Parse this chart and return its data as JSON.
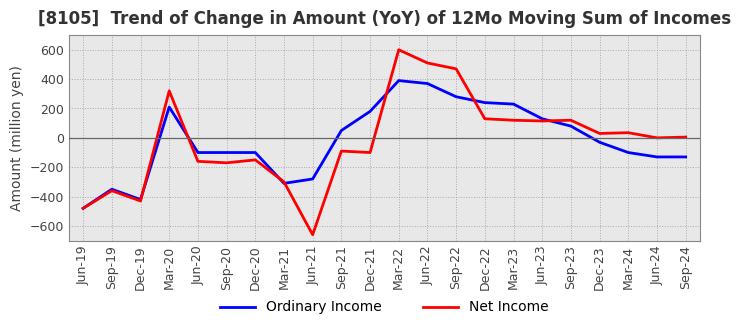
{
  "title": "[8105]  Trend of Change in Amount (YoY) of 12Mo Moving Sum of Incomes",
  "ylabel": "Amount (million yen)",
  "ylim": [
    -700,
    700
  ],
  "yticks": [
    -600,
    -400,
    -200,
    0,
    200,
    400,
    600
  ],
  "x_labels": [
    "Jun-19",
    "Sep-19",
    "Dec-19",
    "Mar-20",
    "Jun-20",
    "Sep-20",
    "Dec-20",
    "Mar-21",
    "Jun-21",
    "Sep-21",
    "Dec-21",
    "Mar-22",
    "Jun-22",
    "Sep-22",
    "Dec-22",
    "Mar-23",
    "Jun-23",
    "Sep-23",
    "Dec-23",
    "Mar-24",
    "Jun-24",
    "Sep-24"
  ],
  "ordinary_income": [
    -480,
    -350,
    -420,
    210,
    -100,
    -100,
    -100,
    -310,
    -280,
    50,
    180,
    390,
    370,
    280,
    240,
    230,
    130,
    80,
    -30,
    -100,
    -130,
    -130
  ],
  "net_income": [
    -480,
    -360,
    -430,
    320,
    -160,
    -170,
    -150,
    -300,
    -660,
    -90,
    -100,
    600,
    510,
    470,
    130,
    120,
    115,
    120,
    30,
    35,
    0,
    5
  ],
  "ordinary_color": "#0000ff",
  "net_color": "#ff0000",
  "grid_color": "#aaaaaa",
  "plot_bg_color": "#e8e8e8",
  "background_color": "#ffffff",
  "title_fontsize": 12,
  "label_fontsize": 10,
  "tick_fontsize": 9
}
